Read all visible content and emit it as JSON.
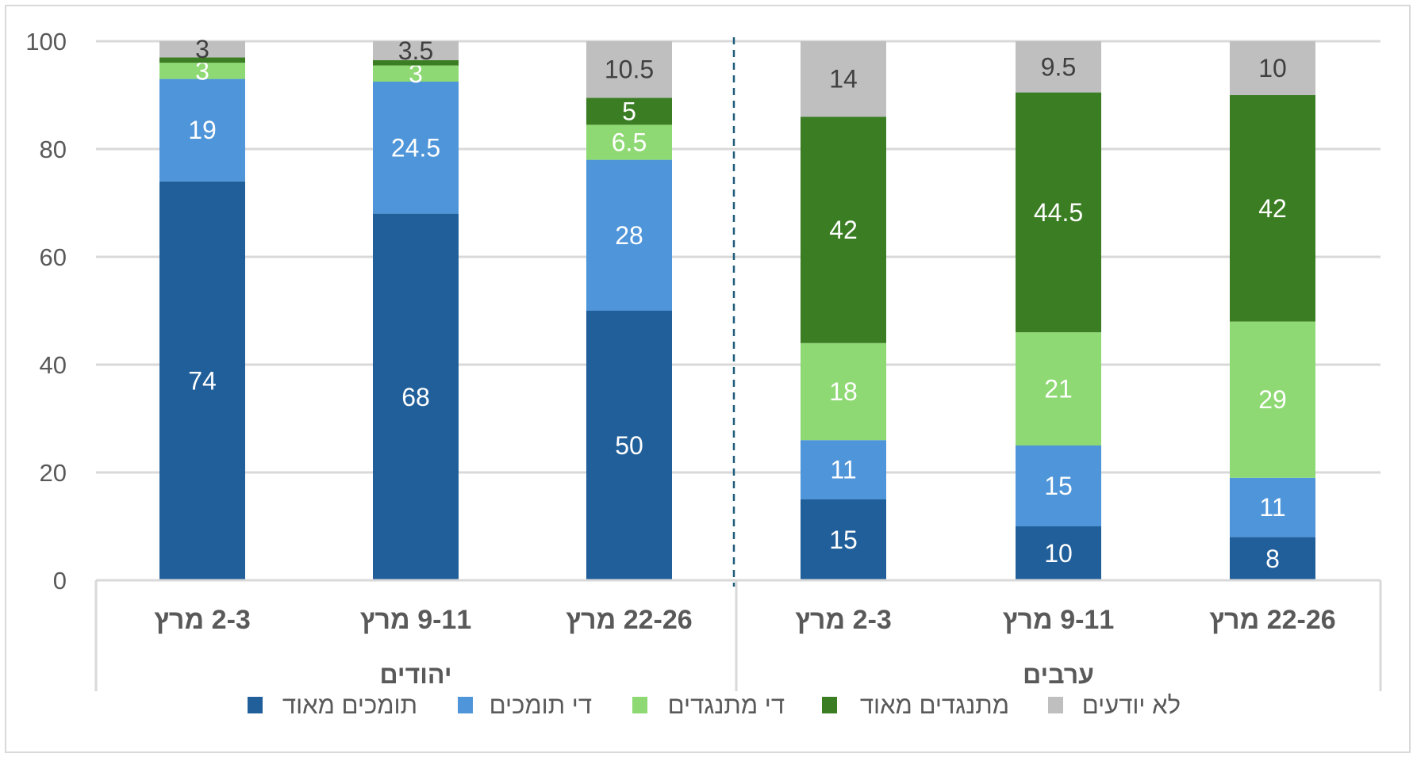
{
  "chart_data": {
    "type": "bar",
    "stacked": true,
    "title": "",
    "xlabel": "",
    "ylabel": "",
    "ylim": [
      0,
      100
    ],
    "yticks": [
      "0",
      "20",
      "40",
      "60",
      "80",
      "100"
    ],
    "grid": true,
    "legend_position": "bottom",
    "groups": [
      {
        "name": "יהודים",
        "categories": [
          "2-3 מרץ",
          "9-11 מרץ",
          "22-26 מרץ"
        ]
      },
      {
        "name": "ערבים",
        "categories": [
          "2-3 מרץ",
          "9-11 מרץ",
          "22-26 מרץ"
        ]
      }
    ],
    "categories": [
      "2-3 מרץ",
      "9-11 מרץ",
      "22-26 מרץ",
      "2-3 מרץ",
      "9-11 מרץ",
      "22-26 מרץ"
    ],
    "series": [
      {
        "name": "תומכים מאוד",
        "color": "#215F9A",
        "label_color": "#ffffff",
        "values": [
          74,
          68,
          50,
          15,
          10,
          8
        ],
        "labels": [
          "74",
          "68",
          "50",
          "15",
          "10",
          "8"
        ]
      },
      {
        "name": "די תומכים",
        "color": "#4E95D9",
        "label_color": "#ffffff",
        "values": [
          19,
          24.5,
          28,
          11,
          15,
          11
        ],
        "labels": [
          "19",
          "24.5",
          "28",
          "11",
          "15",
          "11"
        ]
      },
      {
        "name": "די מתנגדים",
        "color": "#8ED973",
        "label_color": "#ffffff",
        "values": [
          3,
          3,
          6.5,
          18,
          21,
          29
        ],
        "labels": [
          "3",
          "3",
          "6.5",
          "18",
          "21",
          "29"
        ]
      },
      {
        "name": "מתנגדים מאוד",
        "color": "#3B7D23",
        "label_color": "#ffffff",
        "values": [
          1,
          1,
          5,
          42,
          44.5,
          42
        ],
        "labels": [
          "",
          "",
          "5",
          "42",
          "44.5",
          "42"
        ]
      },
      {
        "name": "לא יודעים",
        "color": "#BFBFBF",
        "label_color": "#404040",
        "values": [
          3,
          3.5,
          10.5,
          14,
          9.5,
          10
        ],
        "labels": [
          "3",
          "3.5",
          "10.5",
          "14",
          "9.5",
          "10"
        ]
      }
    ],
    "legend_order": [
      "תומכים מאוד",
      "די תומכים",
      "די מתנגדים",
      "מתנגדים מאוד",
      "לא יודעים"
    ],
    "divider": "dashed line between groups"
  }
}
